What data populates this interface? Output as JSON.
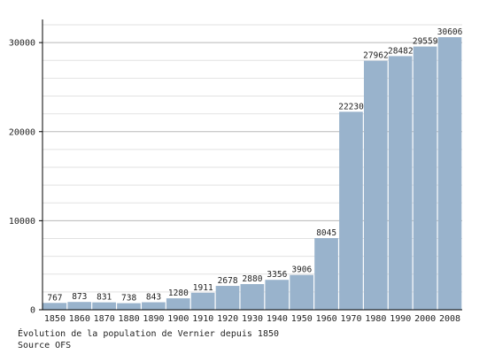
{
  "chart_data": {
    "type": "bar",
    "categories": [
      "1850",
      "1860",
      "1870",
      "1880",
      "1890",
      "1900",
      "1910",
      "1920",
      "1930",
      "1940",
      "1950",
      "1960",
      "1970",
      "1980",
      "1990",
      "2000",
      "2008"
    ],
    "values": [
      767,
      873,
      831,
      738,
      843,
      1280,
      1911,
      2678,
      2880,
      3356,
      3906,
      8045,
      22230,
      27962,
      28482,
      29559,
      30606
    ],
    "ylim": [
      0,
      32000
    ],
    "yticks": [
      0,
      10000,
      20000,
      30000
    ],
    "minor_step": 2000,
    "grid": true,
    "bar_color": "#99b3cc",
    "title": "",
    "xlabel": "",
    "ylabel": ""
  },
  "caption": {
    "line1": "Évolution de la population de Vernier depuis 1850",
    "line2": "Source OFS"
  }
}
